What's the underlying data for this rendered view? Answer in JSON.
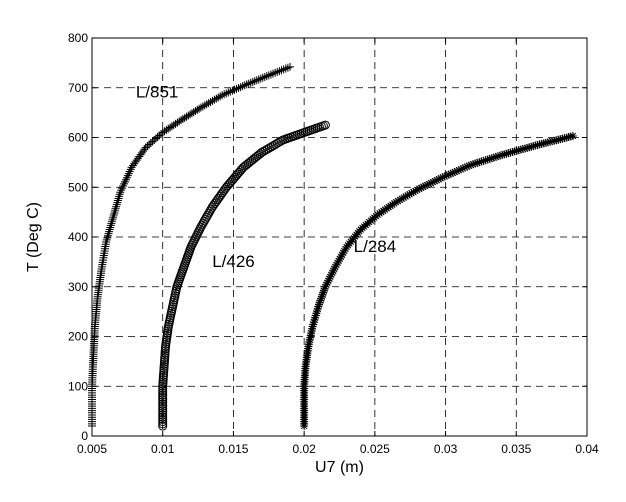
{
  "chart_data": {
    "type": "scatter",
    "title": "",
    "xlabel": "U7 (m)",
    "ylabel": "T (Deg C)",
    "xlim": [
      0.005,
      0.04
    ],
    "ylim": [
      0,
      800
    ],
    "xticks": [
      0.005,
      0.01,
      0.015,
      0.02,
      0.025,
      0.03,
      0.035,
      0.04
    ],
    "xtick_labels": [
      "0.005",
      "0.01",
      "0.015",
      "0.02",
      "0.025",
      "0.03",
      "0.035",
      "0.04"
    ],
    "yticks": [
      0,
      100,
      200,
      300,
      400,
      500,
      600,
      700,
      800
    ],
    "ytick_labels": [
      "0",
      "100",
      "200",
      "300",
      "400",
      "500",
      "600",
      "700",
      "800"
    ],
    "grid": true,
    "series": [
      {
        "marker": "plus",
        "x": [
          0.005,
          0.005,
          0.005,
          0.0051,
          0.0052,
          0.0054,
          0.0057,
          0.006,
          0.0065,
          0.007,
          0.0078,
          0.0088,
          0.01,
          0.0113,
          0.0127,
          0.0142,
          0.0158,
          0.0175,
          0.019
        ],
        "y": [
          20,
          60,
          100,
          160,
          220,
          280,
          340,
          390,
          440,
          490,
          540,
          580,
          610,
          635,
          660,
          685,
          705,
          725,
          742
        ]
      },
      {
        "marker": "circle",
        "x": [
          0.01,
          0.01,
          0.01,
          0.0101,
          0.0102,
          0.0104,
          0.0107,
          0.011,
          0.0115,
          0.012,
          0.0127,
          0.0135,
          0.0145,
          0.0157,
          0.017,
          0.0185,
          0.0198,
          0.0208,
          0.0215
        ],
        "y": [
          20,
          60,
          100,
          140,
          180,
          220,
          260,
          300,
          340,
          380,
          420,
          460,
          500,
          540,
          570,
          595,
          608,
          618,
          625
        ]
      },
      {
        "marker": "asterisk",
        "x": [
          0.02,
          0.02,
          0.02,
          0.0201,
          0.0203,
          0.0206,
          0.021,
          0.0215,
          0.0222,
          0.023,
          0.024,
          0.0252,
          0.0265,
          0.028,
          0.0298,
          0.0318,
          0.034,
          0.0365,
          0.039
        ],
        "y": [
          20,
          60,
          100,
          140,
          180,
          220,
          260,
          300,
          340,
          380,
          415,
          445,
          470,
          495,
          520,
          545,
          565,
          585,
          603
        ]
      }
    ],
    "annotations": [
      {
        "text": "L/851",
        "x": 0.0081,
        "y": 680
      },
      {
        "text": "L/426",
        "x": 0.0135,
        "y": 340
      },
      {
        "text": "L/284",
        "x": 0.0235,
        "y": 370
      }
    ]
  }
}
